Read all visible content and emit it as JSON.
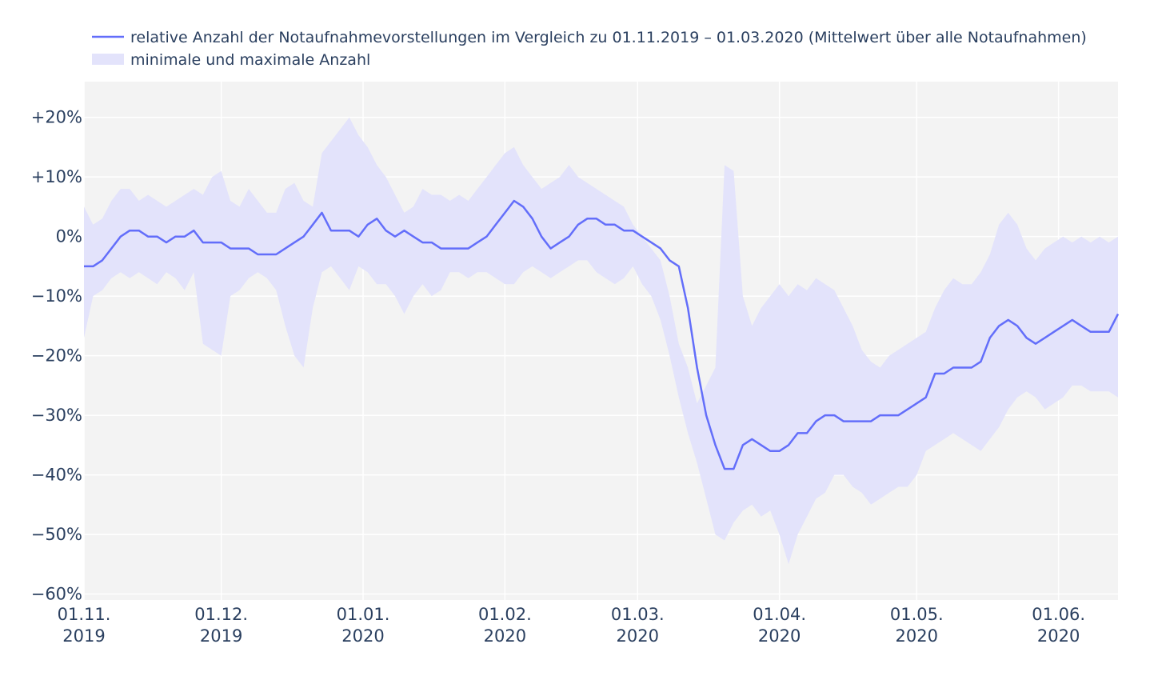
{
  "colors": {
    "line": "#636efa",
    "band": "#e3e3fb",
    "plot_bg": "#f3f3f3",
    "grid": "#ffffff",
    "text": "#2a3f5f"
  },
  "chart_data": {
    "type": "line",
    "legend": {
      "position": "top-left",
      "entries": [
        {
          "id": "mean",
          "label": "relative Anzahl der Notaufnahmevorstellungen im Vergleich zu 01.11.2019 – 01.03.2020 (Mittelwert über alle Notaufnahmen)",
          "style": "line"
        },
        {
          "id": "range",
          "label": "minimale und maximale Anzahl",
          "style": "band"
        }
      ]
    },
    "x_start": "2019-11-01",
    "x_range_days": [
      0,
      226
    ],
    "ylim": [
      -61,
      26
    ],
    "y_ticks": [
      {
        "value": 20,
        "label": "+20%"
      },
      {
        "value": 10,
        "label": "+10%"
      },
      {
        "value": 0,
        "label": "0%"
      },
      {
        "value": -10,
        "label": "−10%"
      },
      {
        "value": -20,
        "label": "−20%"
      },
      {
        "value": -30,
        "label": "−30%"
      },
      {
        "value": -40,
        "label": "−40%"
      },
      {
        "value": -50,
        "label": "−50%"
      },
      {
        "value": -60,
        "label": "−60%"
      }
    ],
    "x_ticks": [
      {
        "day": 0,
        "line1": "01.11.",
        "line2": "2019"
      },
      {
        "day": 30,
        "line1": "01.12.",
        "line2": "2019"
      },
      {
        "day": 61,
        "line1": "01.01.",
        "line2": "2020"
      },
      {
        "day": 92,
        "line1": "01.02.",
        "line2": "2020"
      },
      {
        "day": 121,
        "line1": "01.03.",
        "line2": "2020"
      },
      {
        "day": 152,
        "line1": "01.04.",
        "line2": "2020"
      },
      {
        "day": 182,
        "line1": "01.05.",
        "line2": "2020"
      },
      {
        "day": 213,
        "line1": "01.06.",
        "line2": "2020"
      }
    ],
    "series": [
      {
        "name": "mean",
        "x": [
          0,
          2,
          4,
          6,
          8,
          10,
          12,
          14,
          16,
          18,
          20,
          22,
          24,
          26,
          28,
          30,
          32,
          34,
          36,
          38,
          40,
          42,
          44,
          46,
          48,
          50,
          52,
          54,
          56,
          58,
          60,
          62,
          64,
          66,
          68,
          70,
          72,
          74,
          76,
          78,
          80,
          82,
          84,
          86,
          88,
          90,
          92,
          94,
          96,
          98,
          100,
          102,
          104,
          106,
          108,
          110,
          112,
          114,
          116,
          118,
          120,
          122,
          124,
          126,
          128,
          130,
          132,
          134,
          136,
          138,
          140,
          142,
          144,
          146,
          148,
          150,
          152,
          154,
          156,
          158,
          160,
          162,
          164,
          166,
          168,
          170,
          172,
          174,
          176,
          178,
          180,
          182,
          184,
          186,
          188,
          190,
          192,
          194,
          196,
          198,
          200,
          202,
          204,
          206,
          208,
          210,
          212,
          214,
          216,
          218,
          220,
          222,
          224,
          226
        ],
        "values": [
          -5,
          -5,
          -4,
          -2,
          0,
          1,
          1,
          0,
          0,
          -1,
          0,
          0,
          1,
          -1,
          -1,
          -1,
          -2,
          -2,
          -2,
          -3,
          -3,
          -3,
          -2,
          -1,
          0,
          2,
          4,
          1,
          1,
          1,
          0,
          2,
          3,
          1,
          0,
          1,
          0,
          -1,
          -1,
          -2,
          -2,
          -2,
          -2,
          -1,
          0,
          2,
          4,
          6,
          5,
          3,
          0,
          -2,
          -1,
          0,
          2,
          3,
          3,
          2,
          2,
          1,
          1,
          0,
          -1,
          -2,
          -4,
          -5,
          -12,
          -22,
          -30,
          -35,
          -39,
          -39,
          -35,
          -34,
          -35,
          -36,
          -36,
          -35,
          -33,
          -33,
          -31,
          -30,
          -30,
          -31,
          -31,
          -31,
          -31,
          -30,
          -30,
          -30,
          -29,
          -28,
          -27,
          -23,
          -23,
          -22,
          -22,
          -22,
          -21,
          -17,
          -15,
          -14,
          -15,
          -17,
          -18,
          -17,
          -16,
          -15,
          -14,
          -15,
          -16,
          -16,
          -16,
          -13
        ]
      },
      {
        "name": "max",
        "x": [
          0,
          2,
          4,
          6,
          8,
          10,
          12,
          14,
          16,
          18,
          20,
          22,
          24,
          26,
          28,
          30,
          32,
          34,
          36,
          38,
          40,
          42,
          44,
          46,
          48,
          50,
          52,
          54,
          56,
          58,
          60,
          62,
          64,
          66,
          68,
          70,
          72,
          74,
          76,
          78,
          80,
          82,
          84,
          86,
          88,
          90,
          92,
          94,
          96,
          98,
          100,
          102,
          104,
          106,
          108,
          110,
          112,
          114,
          116,
          118,
          120,
          122,
          124,
          126,
          128,
          130,
          132,
          134,
          136,
          138,
          140,
          142,
          144,
          146,
          148,
          150,
          152,
          154,
          156,
          158,
          160,
          162,
          164,
          166,
          168,
          170,
          172,
          174,
          176,
          178,
          180,
          182,
          184,
          186,
          188,
          190,
          192,
          194,
          196,
          198,
          200,
          202,
          204,
          206,
          208,
          210,
          212,
          214,
          216,
          218,
          220,
          222,
          224,
          226
        ],
        "values": [
          5,
          2,
          3,
          6,
          8,
          8,
          6,
          7,
          6,
          5,
          6,
          7,
          8,
          7,
          10,
          11,
          6,
          5,
          8,
          6,
          4,
          4,
          8,
          9,
          6,
          5,
          14,
          16,
          18,
          20,
          17,
          15,
          12,
          10,
          7,
          4,
          5,
          8,
          7,
          7,
          6,
          7,
          6,
          8,
          10,
          12,
          14,
          15,
          12,
          10,
          8,
          9,
          10,
          12,
          10,
          9,
          8,
          7,
          6,
          5,
          2,
          0,
          -2,
          -4,
          -10,
          -18,
          -22,
          -28,
          -25,
          -22,
          12,
          11,
          -10,
          -15,
          -12,
          -10,
          -8,
          -10,
          -8,
          -9,
          -7,
          -8,
          -9,
          -12,
          -15,
          -19,
          -21,
          -22,
          -20,
          -19,
          -18,
          -17,
          -16,
          -12,
          -9,
          -7,
          -8,
          -8,
          -6,
          -3,
          2,
          4,
          2,
          -2,
          -4,
          -2,
          -1,
          0,
          -1,
          0,
          -1,
          0,
          -1,
          0
        ]
      },
      {
        "name": "min",
        "x": [
          0,
          2,
          4,
          6,
          8,
          10,
          12,
          14,
          16,
          18,
          20,
          22,
          24,
          26,
          28,
          30,
          32,
          34,
          36,
          38,
          40,
          42,
          44,
          46,
          48,
          50,
          52,
          54,
          56,
          58,
          60,
          62,
          64,
          66,
          68,
          70,
          72,
          74,
          76,
          78,
          80,
          82,
          84,
          86,
          88,
          90,
          92,
          94,
          96,
          98,
          100,
          102,
          104,
          106,
          108,
          110,
          112,
          114,
          116,
          118,
          120,
          122,
          124,
          126,
          128,
          130,
          132,
          134,
          136,
          138,
          140,
          142,
          144,
          146,
          148,
          150,
          152,
          154,
          156,
          158,
          160,
          162,
          164,
          166,
          168,
          170,
          172,
          174,
          176,
          178,
          180,
          182,
          184,
          186,
          188,
          190,
          192,
          194,
          196,
          198,
          200,
          202,
          204,
          206,
          208,
          210,
          212,
          214,
          216,
          218,
          220,
          222,
          224,
          226
        ],
        "values": [
          -17,
          -10,
          -9,
          -7,
          -6,
          -7,
          -6,
          -7,
          -8,
          -6,
          -7,
          -9,
          -6,
          -18,
          -19,
          -20,
          -10,
          -9,
          -7,
          -6,
          -7,
          -9,
          -15,
          -20,
          -22,
          -12,
          -6,
          -5,
          -7,
          -9,
          -5,
          -6,
          -8,
          -8,
          -10,
          -13,
          -10,
          -8,
          -10,
          -9,
          -6,
          -6,
          -7,
          -6,
          -6,
          -7,
          -8,
          -8,
          -6,
          -5,
          -6,
          -7,
          -6,
          -5,
          -4,
          -4,
          -6,
          -7,
          -8,
          -7,
          -5,
          -8,
          -10,
          -14,
          -20,
          -27,
          -33,
          -38,
          -44,
          -50,
          -51,
          -48,
          -46,
          -45,
          -47,
          -46,
          -50,
          -55,
          -50,
          -47,
          -44,
          -43,
          -40,
          -40,
          -42,
          -43,
          -45,
          -44,
          -43,
          -42,
          -42,
          -40,
          -36,
          -35,
          -34,
          -33,
          -34,
          -35,
          -36,
          -34,
          -32,
          -29,
          -27,
          -26,
          -27,
          -29,
          -28,
          -27,
          -25,
          -25,
          -26,
          -26,
          -26,
          -27
        ]
      }
    ]
  }
}
